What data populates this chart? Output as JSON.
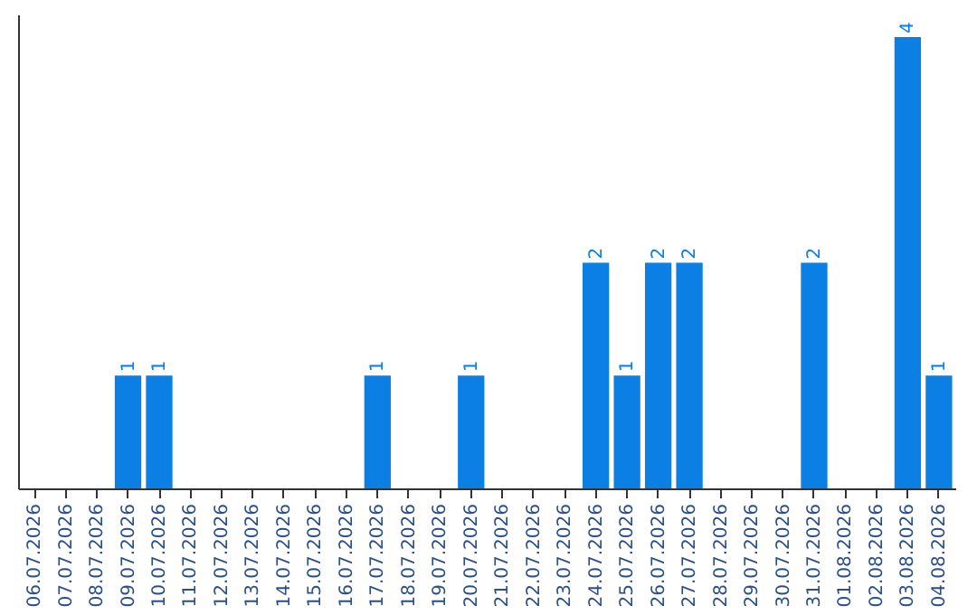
{
  "chart_data": {
    "type": "bar",
    "categories": [
      "06.07.2026",
      "07.07.2026",
      "08.07.2026",
      "09.07.2026",
      "10.07.2026",
      "11.07.2026",
      "12.07.2026",
      "13.07.2026",
      "14.07.2026",
      "15.07.2026",
      "16.07.2026",
      "17.07.2026",
      "18.07.2026",
      "19.07.2026",
      "20.07.2026",
      "21.07.2026",
      "22.07.2026",
      "23.07.2026",
      "24.07.2026",
      "25.07.2026",
      "26.07.2026",
      "27.07.2026",
      "28.07.2026",
      "29.07.2026",
      "30.07.2026",
      "31.07.2026",
      "01.08.2026",
      "02.08.2026",
      "03.08.2026",
      "04.08.2026"
    ],
    "values": [
      0,
      0,
      0,
      1,
      1,
      0,
      0,
      0,
      0,
      0,
      0,
      1,
      0,
      0,
      1,
      0,
      0,
      0,
      2,
      1,
      2,
      2,
      0,
      0,
      0,
      2,
      0,
      0,
      4,
      1
    ],
    "value_labels": [
      null,
      null,
      null,
      "1",
      "1",
      null,
      null,
      null,
      null,
      null,
      null,
      "1",
      null,
      null,
      "1",
      null,
      null,
      null,
      "2",
      "1",
      "2",
      "2",
      null,
      null,
      null,
      "2",
      null,
      null,
      "4",
      "1"
    ],
    "color": "#0b7fe3",
    "ylim": [
      0,
      4.2
    ],
    "tick_labels": "x",
    "grid": false
  }
}
